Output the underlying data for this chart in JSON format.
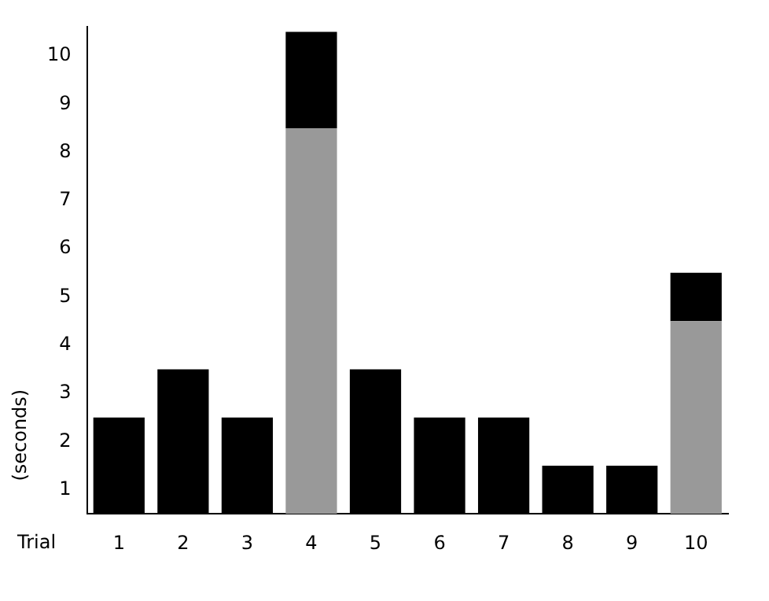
{
  "chart_data": {
    "type": "bar",
    "stacked": true,
    "xlabel": "Trial",
    "ylabel": "(seconds)",
    "categories": [
      "1",
      "2",
      "3",
      "4",
      "5",
      "6",
      "7",
      "8",
      "9",
      "10"
    ],
    "series": [
      {
        "color": "#999999",
        "values": [
          null,
          null,
          null,
          8,
          null,
          null,
          null,
          null,
          null,
          4
        ]
      },
      {
        "color": "#000000",
        "values": [
          2,
          3,
          2,
          2,
          3,
          2,
          2,
          1,
          1,
          1
        ]
      }
    ],
    "ylim": [
      0,
      10.1
    ],
    "yticks": [
      {
        "value": 0.5,
        "label": "1"
      },
      {
        "value": 1.5,
        "label": "2"
      },
      {
        "value": 2.5,
        "label": "3"
      },
      {
        "value": 3.5,
        "label": "4"
      },
      {
        "value": 4.5,
        "label": "5"
      },
      {
        "value": 5.5,
        "label": "6"
      },
      {
        "value": 6.5,
        "label": "7"
      },
      {
        "value": 7.5,
        "label": "8"
      },
      {
        "value": 8.5,
        "label": "9"
      },
      {
        "value": 9.5,
        "label": "10"
      }
    ],
    "grid": false,
    "legend": false
  }
}
